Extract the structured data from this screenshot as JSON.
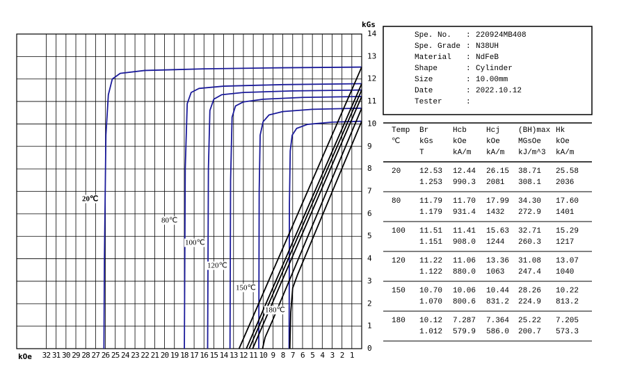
{
  "chart_data": {
    "type": "line",
    "x_label": "kOe",
    "y_label": "kGs",
    "xlim": [
      35,
      0
    ],
    "ylim": [
      0,
      14
    ],
    "xticks": [
      1,
      2,
      3,
      4,
      5,
      6,
      7,
      8,
      9,
      10,
      11,
      12,
      13,
      14,
      15,
      16,
      17,
      18,
      19,
      20,
      21,
      22,
      23,
      24,
      25,
      26,
      27,
      28,
      29,
      30,
      31,
      32
    ],
    "yticks": [
      0,
      1,
      2,
      3,
      4,
      5,
      6,
      7,
      8,
      9,
      10,
      11,
      12,
      13,
      14
    ],
    "grid": true,
    "annotations": [
      "20℃",
      "80℃",
      "100℃",
      "120℃",
      "150℃",
      "180℃"
    ],
    "series": [
      {
        "color": "#1a1a9a",
        "x": [
          0,
          8,
          16,
          22,
          24.5,
          25.3,
          25.7,
          25.95,
          26.1,
          26.15
        ],
        "y": [
          12.53,
          12.5,
          12.45,
          12.38,
          12.25,
          12.0,
          11.3,
          9.5,
          4,
          0
        ]
      },
      {
        "color": "#1a1a9a",
        "x": [
          0,
          8,
          14,
          16.5,
          17.3,
          17.7,
          17.9,
          17.99
        ],
        "y": [
          11.79,
          11.75,
          11.68,
          11.58,
          11.4,
          10.9,
          8,
          0
        ]
      },
      {
        "color": "#1a1a9a",
        "x": [
          0,
          7,
          12,
          14.2,
          15,
          15.4,
          15.55,
          15.63
        ],
        "y": [
          11.51,
          11.47,
          11.4,
          11.3,
          11.1,
          10.6,
          8,
          0
        ]
      },
      {
        "color": "#1a1a9a",
        "x": [
          0,
          6,
          10,
          12,
          12.8,
          13.15,
          13.3,
          13.36
        ],
        "y": [
          11.22,
          11.18,
          11.1,
          10.98,
          10.8,
          10.3,
          7.5,
          0
        ]
      },
      {
        "color": "#1a1a9a",
        "x": [
          0,
          5,
          8,
          9.4,
          10,
          10.3,
          10.4,
          10.44
        ],
        "y": [
          10.7,
          10.65,
          10.55,
          10.4,
          10.1,
          9.5,
          7,
          0
        ]
      },
      {
        "color": "#1a1a9a",
        "x": [
          0,
          3,
          5.5,
          6.6,
          7.05,
          7.25,
          7.33,
          7.364
        ],
        "y": [
          10.12,
          10.08,
          9.98,
          9.8,
          9.5,
          8.8,
          6.5,
          0
        ]
      },
      {
        "color": "#000000",
        "x": [
          0,
          12.44
        ],
        "y": [
          12.53,
          0
        ]
      },
      {
        "color": "#000000",
        "x": [
          0,
          11.7
        ],
        "y": [
          11.79,
          0
        ]
      },
      {
        "color": "#000000",
        "x": [
          0,
          11.41
        ],
        "y": [
          11.51,
          0
        ]
      },
      {
        "color": "#000000",
        "x": [
          0,
          11.06
        ],
        "y": [
          11.22,
          0
        ]
      },
      {
        "color": "#000000",
        "x": [
          0,
          9,
          9.8,
          10.06
        ],
        "y": [
          10.7,
          1.3,
          0.5,
          0
        ]
      },
      {
        "color": "#000000",
        "x": [
          0,
          6.5,
          7.0,
          7.2,
          7.287
        ],
        "y": [
          10.12,
          3.3,
          2.7,
          1.6,
          0
        ]
      }
    ]
  },
  "info": [
    {
      "label": "Spe. No.",
      "value": "220924MB408"
    },
    {
      "label": "Spe. Grade",
      "value": "N38UH"
    },
    {
      "label": "Material",
      "value": "NdFeB"
    },
    {
      "label": "Shape",
      "value": "Cylinder"
    },
    {
      "label": "Size",
      "value": "10.00mm"
    },
    {
      "label": "Date",
      "value": "2022.10.12"
    },
    {
      "label": "Tester"
    }
  ],
  "table": {
    "header": [
      [
        "Temp",
        "℃"
      ],
      [
        "Br",
        "kGs",
        "T"
      ],
      [
        "Hcb",
        "kOe",
        "kA/m"
      ],
      [
        "Hcj",
        "kOe",
        "kA/m"
      ],
      [
        "(BH)max",
        "MGsOe",
        "kJ/m^3"
      ],
      [
        "Hk",
        "kOe",
        "kA/m"
      ]
    ],
    "rows": [
      [
        "20",
        [
          "12.53",
          "1.253"
        ],
        [
          "12.44",
          "990.3"
        ],
        [
          "26.15",
          "2081"
        ],
        [
          "38.71",
          "308.1"
        ],
        [
          "25.58",
          "2036"
        ]
      ],
      [
        "80",
        [
          "11.79",
          "1.179"
        ],
        [
          "11.70",
          "931.4"
        ],
        [
          "17.99",
          "1432"
        ],
        [
          "34.30",
          "272.9"
        ],
        [
          "17.60",
          "1401"
        ]
      ],
      [
        "100",
        [
          "11.51",
          "1.151"
        ],
        [
          "11.41",
          "908.0"
        ],
        [
          "15.63",
          "1244"
        ],
        [
          "32.71",
          "260.3"
        ],
        [
          "15.29",
          "1217"
        ]
      ],
      [
        "120",
        [
          "11.22",
          "1.122"
        ],
        [
          "11.06",
          "880.0"
        ],
        [
          "13.36",
          "1063"
        ],
        [
          "31.08",
          "247.4"
        ],
        [
          "13.07",
          "1040"
        ]
      ],
      [
        "150",
        [
          "10.70",
          "1.070"
        ],
        [
          "10.06",
          "800.6"
        ],
        [
          "10.44",
          "831.2"
        ],
        [
          "28.26",
          "224.9"
        ],
        [
          "10.22",
          "813.2"
        ]
      ],
      [
        "180",
        [
          "10.12",
          "1.012"
        ],
        [
          "7.287",
          "579.9"
        ],
        [
          "7.364",
          "586.0"
        ],
        [
          "25.22",
          "200.7"
        ],
        [
          "7.205",
          "573.3"
        ]
      ]
    ]
  }
}
